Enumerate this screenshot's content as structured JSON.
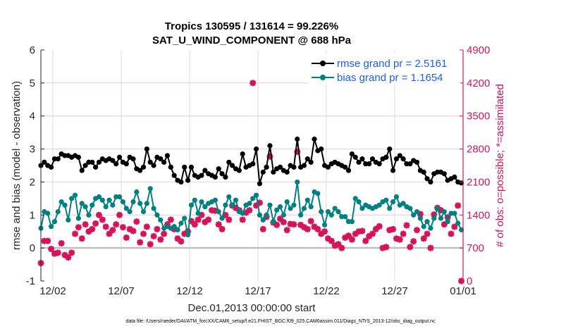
{
  "chart_data": {
    "type": "line",
    "title": "Tropics 130595 / 131614 = 99.226%",
    "subtitle": "SAT_U_WIND_COMPONENT @ 688 hPa",
    "xlabel": "Dec.01,2013 00:00:00 start",
    "ylabel": "rmse and bias (model - observation)",
    "y2label": "# of obs: o=possible; *=assimilated",
    "footer": "data file: /Users/raeder/DAI/ATM_forcXX/CAM6_setup/f.e21.FHIST_BGC.f09_025.CAM6assim.011/Diags_NTrS_2013-12/obs_diag_output.nc",
    "xlim": [
      "2013-12-01",
      "2014-01-01"
    ],
    "ylim": [
      -1,
      6
    ],
    "y2lim": [
      0,
      4900
    ],
    "x_ticks": [
      "12/02",
      "12/07",
      "12/12",
      "12/17",
      "12/22",
      "12/27",
      "01/01"
    ],
    "y_ticks": [
      "-1",
      "0",
      "1",
      "2",
      "3",
      "4",
      "5",
      "6"
    ],
    "y2_ticks": [
      "0",
      "700",
      "1400",
      "2100",
      "2800",
      "3500",
      "4200",
      "4900"
    ],
    "grid": true,
    "legend_position": "top-right",
    "colors": {
      "rmse": "#000000",
      "bias": "#008080",
      "obs": "#d4145a",
      "legend_text": "#1a5cff",
      "zero_line": "#bfbfbf"
    },
    "series": [
      {
        "name": "rmse grand pr = 2.5161",
        "axis": "left",
        "marker": "circle",
        "values": [
          2.5,
          2.6,
          2.5,
          2.45,
          2.7,
          2.7,
          2.85,
          2.8,
          2.8,
          2.75,
          2.8,
          2.75,
          2.35,
          2.5,
          2.6,
          2.6,
          2.45,
          2.6,
          2.7,
          2.65,
          2.7,
          2.65,
          2.55,
          2.75,
          2.6,
          2.55,
          2.75,
          2.7,
          2.4,
          2.35,
          2.45,
          3.0,
          2.6,
          2.5,
          2.75,
          2.7,
          2.6,
          2.8,
          2.45,
          2.2,
          2.05,
          2.0,
          2.45,
          2.05,
          2.45,
          2.2,
          2.15,
          2.2,
          2.35,
          2.25,
          2.2,
          2.15,
          2.4,
          2.25,
          2.15,
          2.6,
          2.5,
          2.4,
          2.35,
          2.85,
          2.45,
          2.5,
          2.55,
          3.0,
          1.95,
          2.3,
          2.45,
          3.1,
          2.3,
          2.4,
          2.45,
          2.35,
          2.3,
          2.5,
          2.45,
          3.3,
          2.45,
          2.5,
          2.7,
          2.6,
          3.3,
          2.95,
          3.0,
          2.5,
          2.45,
          2.55,
          2.6,
          2.55,
          2.5,
          2.45,
          2.35,
          2.85,
          2.75,
          2.6,
          2.7,
          2.55,
          2.55,
          2.7,
          2.6,
          2.55,
          2.7,
          2.75,
          3.0,
          2.35,
          2.7,
          2.8,
          2.7,
          2.55,
          2.55,
          2.65,
          2.6,
          2.35,
          2.3,
          2.1,
          2.0,
          2.25,
          2.3,
          2.3,
          2.25,
          2.05,
          2.1,
          2.15,
          2.0,
          1.97
        ]
      },
      {
        "name": "bias grand pr = 1.1654",
        "axis": "left",
        "marker": "circle",
        "values": [
          0.6,
          1.1,
          1.05,
          0.65,
          0.8,
          1.1,
          1.4,
          1.3,
          0.85,
          1.5,
          1.6,
          0.9,
          1.35,
          1.25,
          1.0,
          1.3,
          1.5,
          1.55,
          1.45,
          1.25,
          1.45,
          1.3,
          1.55,
          1.55,
          1.4,
          1.2,
          1.1,
          1.4,
          1.7,
          1.35,
          1.1,
          1.35,
          1.8,
          1.2,
          1.0,
          0.85,
          0.6,
          0.65,
          0.6,
          0.65,
          0.55,
          0.75,
          0.9,
          0.4,
          1.3,
          1.45,
          1.05,
          1.4,
          1.25,
          1.35,
          1.4,
          1.45,
          1.1,
          0.9,
          1.3,
          1.55,
          1.3,
          1.45,
          1.1,
          1.05,
          1.3,
          1.35,
          1.5,
          1.6,
          1.0,
          0.85,
          1.0,
          1.3,
          0.8,
          1.15,
          1.25,
          1.0,
          1.4,
          1.2,
          1.3,
          2.0,
          1.0,
          1.2,
          1.45,
          1.25,
          1.7,
          1.65,
          1.1,
          0.7,
          1.1,
          1.0,
          1.2,
          1.1,
          0.95,
          0.95,
          0.8,
          0.8,
          1.5,
          1.4,
          1.2,
          1.3,
          1.25,
          1.2,
          1.25,
          1.3,
          1.4,
          1.45,
          1.2,
          1.4,
          1.55,
          1.3,
          1.35,
          1.25,
          1.2,
          1.0,
          1.1,
          0.9,
          0.65,
          0.8,
          0.6,
          0.9,
          1.2,
          0.9,
          1.1,
          0.8,
          1.05,
          1.05,
          0.75,
          0.55
        ]
      },
      {
        "axis": "right",
        "marker": "o and *",
        "values": [
          380,
          850,
          850,
          680,
          580,
          600,
          800,
          550,
          500,
          600,
          1000,
          1140,
          900,
          1200,
          1050,
          1100,
          1220,
          1400,
          1300,
          1150,
          1000,
          1080,
          1200,
          1400,
          1140,
          920,
          1100,
          1060,
          1260,
          820,
          1000,
          1150,
          780,
          950,
          1100,
          880,
          1000,
          1200,
          1300,
          1100,
          900,
          840,
          1000,
          1050,
          1270,
          1200,
          1300,
          1400,
          1250,
          1300,
          1500,
          1490,
          1200,
          1100,
          1400,
          1300,
          1600,
          1550,
          1500,
          1300,
          1450,
          1500,
          4200,
          1600,
          1660,
          1100,
          1360,
          2640,
          1240,
          1190,
          1320,
          1250,
          1080,
          1210,
          1200,
          2740,
          1190,
          1140,
          1100,
          1270,
          1150,
          1100,
          1000,
          1050,
          900,
          850,
          750,
          780,
          700,
          920,
          960,
          880,
          1000,
          1050,
          1060,
          850,
          950,
          1000,
          1100,
          1160,
          700,
          720,
          1080,
          1100,
          900,
          880,
          1000,
          1180,
          720,
          840,
          1080,
          1420,
          900,
          1000,
          700,
          1410,
          1550,
          1500,
          1200,
          1350,
          1000,
          1150,
          1600,
          0
        ]
      }
    ]
  }
}
